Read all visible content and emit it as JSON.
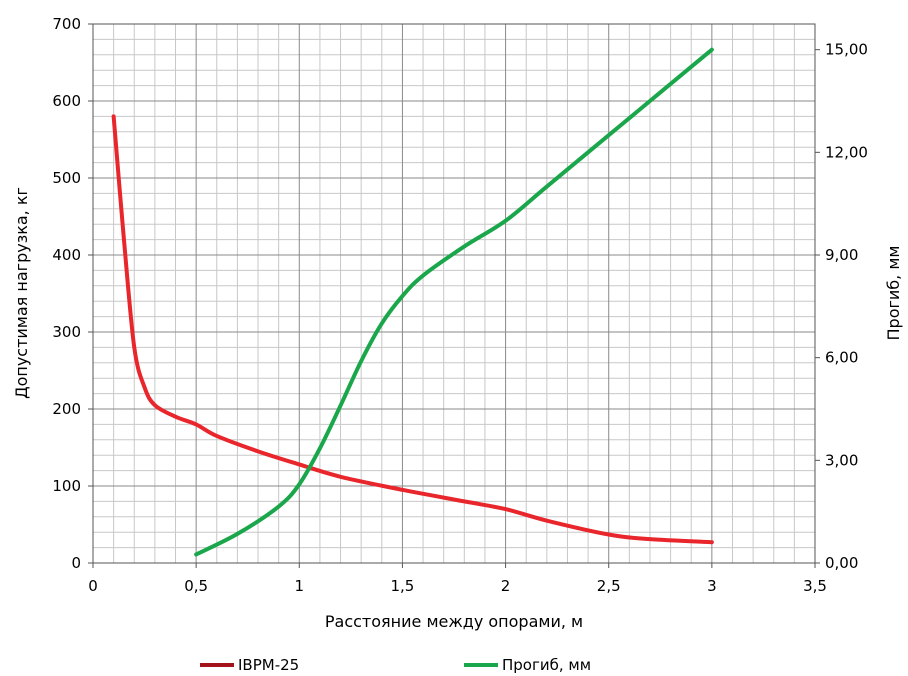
{
  "chart_data": {
    "type": "line",
    "xlabel": "Расстояние между опорами, м",
    "ylabel": "Допустимая нагрузка, кг",
    "y2label": "Прогиб, мм",
    "xlim": [
      0,
      3.5
    ],
    "ylim": [
      0,
      700
    ],
    "y2lim": [
      0,
      15.75
    ],
    "x_ticks": [
      "0",
      "0,5",
      "1",
      "1,5",
      "2",
      "2,5",
      "3",
      "3,5"
    ],
    "y_ticks": [
      "0",
      "100",
      "200",
      "300",
      "400",
      "500",
      "600",
      "700"
    ],
    "y2_ticks": [
      "0,00",
      "3,00",
      "6,00",
      "9,00",
      "12,00",
      "15,00"
    ],
    "grid": true,
    "legend_position": "bottom",
    "series": [
      {
        "name": "IBPM-25",
        "axis": "left",
        "color": "#e8262c",
        "x": [
          0.1,
          0.15,
          0.2,
          0.25,
          0.3,
          0.4,
          0.5,
          0.6,
          0.8,
          1.0,
          1.2,
          1.5,
          1.8,
          2.0,
          2.2,
          2.5,
          2.7,
          3.0
        ],
        "y": [
          580,
          420,
          280,
          228,
          205,
          190,
          180,
          165,
          145,
          128,
          112,
          95,
          80,
          70,
          55,
          37,
          31,
          27
        ]
      },
      {
        "name": "Прогиб, мм",
        "axis": "right",
        "color": "#1aa64a",
        "x": [
          0.5,
          0.7,
          0.9,
          1.0,
          1.1,
          1.2,
          1.3,
          1.4,
          1.5,
          1.6,
          1.8,
          2.0,
          2.2,
          2.5,
          3.0
        ],
        "y": [
          0.25,
          0.85,
          1.65,
          2.3,
          3.35,
          4.6,
          5.9,
          7.0,
          7.8,
          8.4,
          9.25,
          10.0,
          11.0,
          12.5,
          15.0
        ]
      }
    ]
  }
}
